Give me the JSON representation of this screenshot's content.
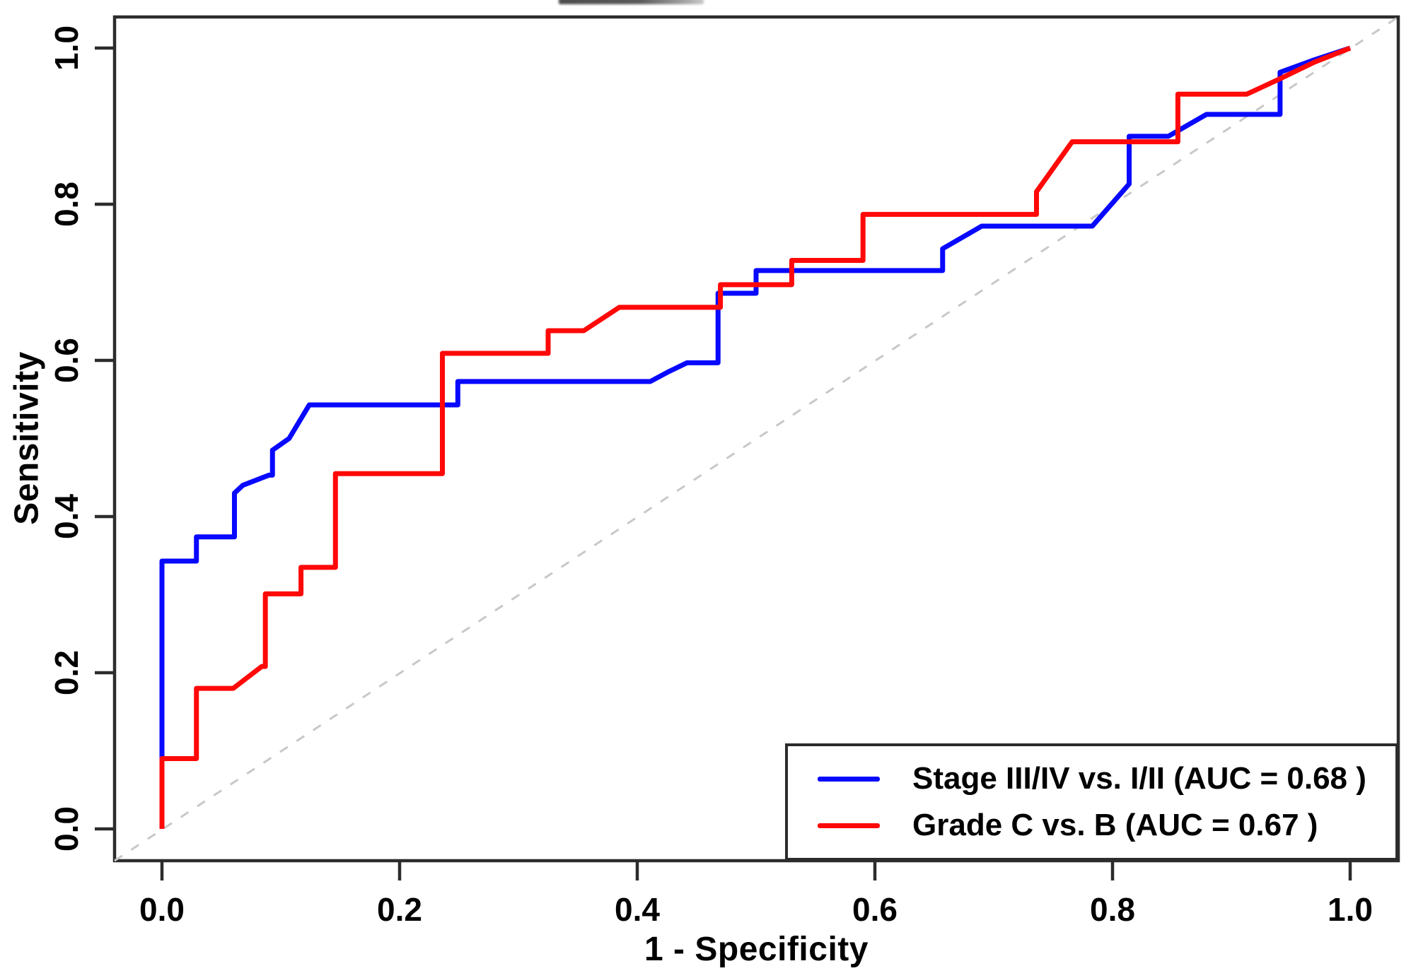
{
  "chart_data": {
    "type": "line",
    "subtype": "roc-curve",
    "title": "",
    "xlabel": "1 - Specificity",
    "ylabel": "Sensitivity",
    "xlim": [
      0,
      1
    ],
    "ylim": [
      0,
      1
    ],
    "grid": false,
    "legend_position": "bottom-right",
    "frame_color": "#2c2c2c",
    "text_color": "#000000",
    "x_ticks": [
      0,
      0.2,
      0.4,
      0.6,
      0.8,
      1.0
    ],
    "x_tick_labels": [
      "0.0",
      "0.2",
      "0.4",
      "0.6",
      "0.8",
      "1.0"
    ],
    "y_ticks": [
      0,
      0.2,
      0.4,
      0.6,
      0.8,
      1.0
    ],
    "y_tick_labels": [
      "0.0",
      "0.2",
      "0.4",
      "0.6",
      "0.8",
      "1.0"
    ],
    "reference_line": {
      "type": "diagonal",
      "style": "dashed",
      "color": "#c8c8c8",
      "from": [
        0,
        0
      ],
      "to": [
        1,
        1
      ]
    },
    "series": [
      {
        "id": "stage",
        "name": "Stage III/IV vs. I/II",
        "auc": 0.68,
        "color": "#0808ff",
        "points": [
          [
            0,
            0
          ],
          [
            0,
            0.343
          ],
          [
            0.029,
            0.343
          ],
          [
            0.029,
            0.374
          ],
          [
            0.061,
            0.374
          ],
          [
            0.061,
            0.43
          ],
          [
            0.068,
            0.44
          ],
          [
            0.09,
            0.453
          ],
          [
            0.093,
            0.453
          ],
          [
            0.093,
            0.485
          ],
          [
            0.107,
            0.5
          ],
          [
            0.124,
            0.543
          ],
          [
            0.249,
            0.543
          ],
          [
            0.249,
            0.573
          ],
          [
            0.411,
            0.573
          ],
          [
            0.427,
            0.586
          ],
          [
            0.442,
            0.597
          ],
          [
            0.468,
            0.597
          ],
          [
            0.468,
            0.686
          ],
          [
            0.5,
            0.686
          ],
          [
            0.5,
            0.715
          ],
          [
            0.657,
            0.715
          ],
          [
            0.657,
            0.743
          ],
          [
            0.69,
            0.772
          ],
          [
            0.783,
            0.772
          ],
          [
            0.814,
            0.826
          ],
          [
            0.814,
            0.887
          ],
          [
            0.847,
            0.887
          ],
          [
            0.879,
            0.915
          ],
          [
            0.941,
            0.915
          ],
          [
            0.941,
            0.969
          ],
          [
            0.97,
            0.985
          ],
          [
            1.0,
            1.0
          ]
        ]
      },
      {
        "id": "grade",
        "name": "Grade C vs. B",
        "auc": 0.67,
        "color": "#ff0808",
        "points": [
          [
            0,
            0
          ],
          [
            0,
            0.09
          ],
          [
            0.029,
            0.09
          ],
          [
            0.029,
            0.18
          ],
          [
            0.06,
            0.18
          ],
          [
            0.084,
            0.208
          ],
          [
            0.087,
            0.208
          ],
          [
            0.087,
            0.301
          ],
          [
            0.117,
            0.301
          ],
          [
            0.117,
            0.335
          ],
          [
            0.146,
            0.335
          ],
          [
            0.146,
            0.455
          ],
          [
            0.236,
            0.455
          ],
          [
            0.236,
            0.609
          ],
          [
            0.325,
            0.609
          ],
          [
            0.325,
            0.638
          ],
          [
            0.355,
            0.638
          ],
          [
            0.385,
            0.668
          ],
          [
            0.47,
            0.668
          ],
          [
            0.47,
            0.697
          ],
          [
            0.53,
            0.697
          ],
          [
            0.53,
            0.728
          ],
          [
            0.59,
            0.728
          ],
          [
            0.59,
            0.787
          ],
          [
            0.736,
            0.787
          ],
          [
            0.736,
            0.816
          ],
          [
            0.766,
            0.88
          ],
          [
            0.855,
            0.88
          ],
          [
            0.855,
            0.941
          ],
          [
            0.913,
            0.941
          ],
          [
            0.94,
            0.96
          ],
          [
            0.97,
            0.982
          ],
          [
            1.0,
            1.0
          ]
        ]
      }
    ]
  },
  "legend": {
    "items": [
      {
        "label": "Stage III/IV vs. I/II (AUC = 0.68 )",
        "color": "#0808ff"
      },
      {
        "label": "Grade C vs. B (AUC = 0.67 )",
        "color": "#ff0808"
      }
    ]
  }
}
